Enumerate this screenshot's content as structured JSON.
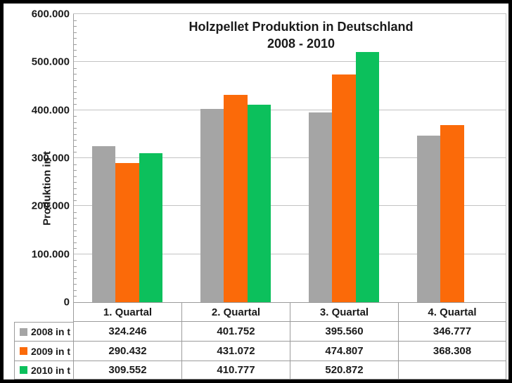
{
  "chart_data": {
    "type": "bar",
    "title_line1": "Holzpellet Produktion in Deutschland",
    "title_line2": "2008 - 2010",
    "ylabel": "Produktion in t",
    "xlabel": "",
    "ylim": [
      0,
      600000
    ],
    "ytick_step": 100000,
    "ytick_values": [
      0,
      100000,
      200000,
      300000,
      400000,
      500000,
      600000
    ],
    "ytick_labels": [
      "0",
      "100.000",
      "200.000",
      "300.000",
      "400.000",
      "500.000",
      "600.000"
    ],
    "minor_tick_divisions": 8,
    "grid": true,
    "legend_position": "table-left",
    "categories": [
      "1. Quartal",
      "2. Quartal",
      "3. Quartal",
      "4. Quartal"
    ],
    "series": [
      {
        "name": "2008 in t",
        "color": "#a5a5a5",
        "values": [
          324246,
          401752,
          395560,
          346777
        ],
        "labels": [
          "324.246",
          "401.752",
          "395.560",
          "346.777"
        ]
      },
      {
        "name": "2009 in t",
        "color": "#fb6a09",
        "values": [
          290432,
          431072,
          474807,
          368308
        ],
        "labels": [
          "290.432",
          "431.072",
          "474.807",
          "368.308"
        ]
      },
      {
        "name": "2010 in t",
        "color": "#0cc05c",
        "values": [
          309552,
          410777,
          520872,
          null
        ],
        "labels": [
          "309.552",
          "410.777",
          "520.872",
          ""
        ]
      }
    ]
  },
  "colors": {
    "grid": "#c3c3c3",
    "axis": "#9e9e9e",
    "table_border": "#9b9b9b",
    "frame": "#000000",
    "text": "#1a1a1a"
  }
}
